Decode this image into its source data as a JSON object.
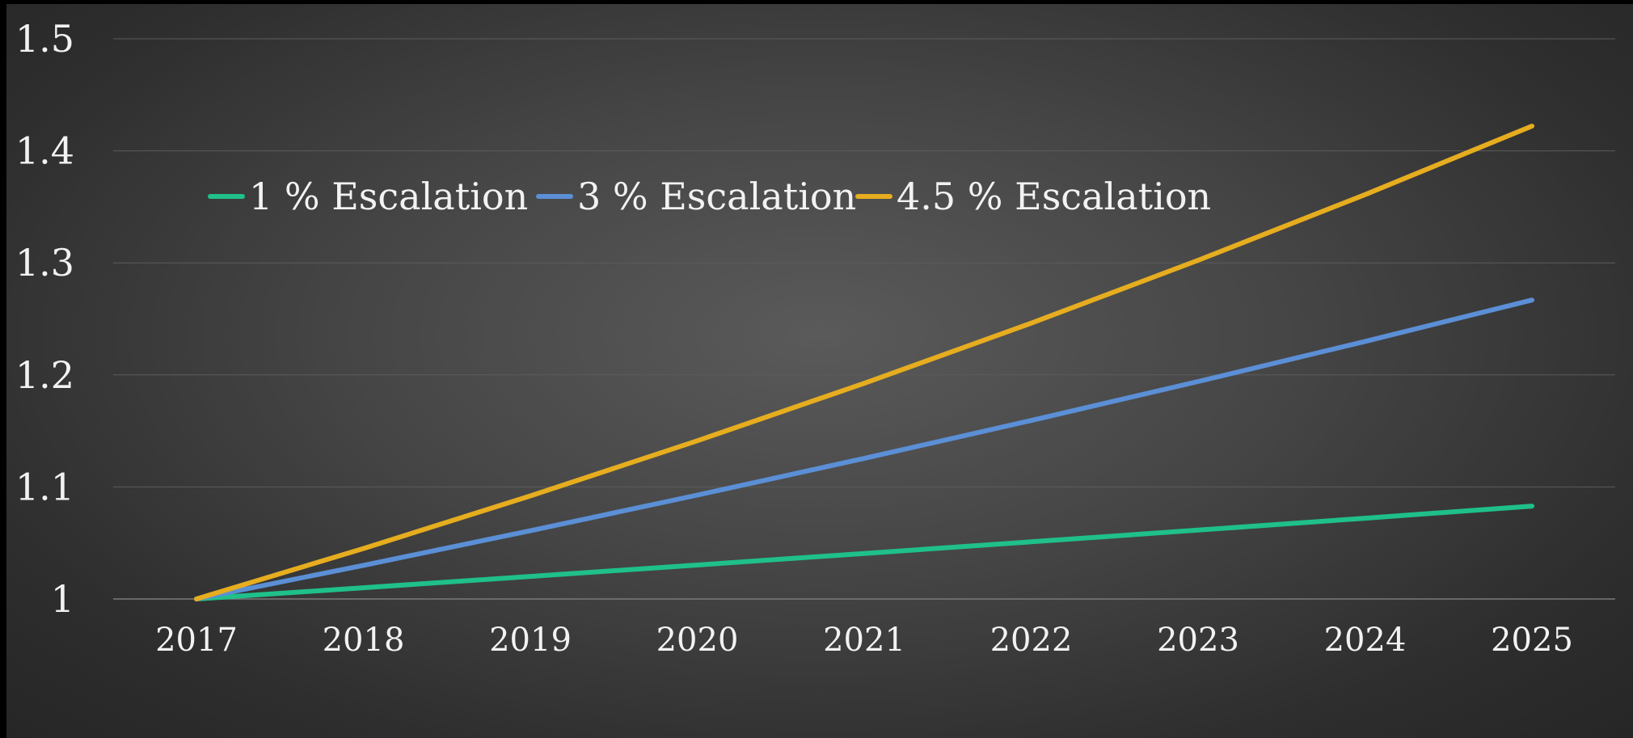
{
  "chart_data": {
    "type": "line",
    "categories": [
      "2017",
      "2018",
      "2019",
      "2020",
      "2021",
      "2022",
      "2023",
      "2024",
      "2025"
    ],
    "series": [
      {
        "name": "1 % Escalation",
        "color": "#1fc08a",
        "values": [
          1.0,
          1.01,
          1.0201,
          1.0303,
          1.0406,
          1.051,
          1.0615,
          1.0721,
          1.0829
        ]
      },
      {
        "name": "3 % Escalation",
        "color": "#5b8fd6",
        "values": [
          1.0,
          1.03,
          1.0609,
          1.0927,
          1.1255,
          1.1593,
          1.1941,
          1.2299,
          1.2668
        ]
      },
      {
        "name": "4.5 % Escalation",
        "color": "#e6ad1f",
        "values": [
          1.0,
          1.045,
          1.092,
          1.1412,
          1.1925,
          1.2462,
          1.3023,
          1.3609,
          1.4221
        ]
      }
    ],
    "yticks": [
      "1",
      "1.1",
      "1.2",
      "1.3",
      "1.4",
      "1.5"
    ],
    "ylim": [
      1,
      1.5
    ],
    "grid": true,
    "legend_position": "top-left",
    "title": "",
    "xlabel": "",
    "ylabel": ""
  }
}
